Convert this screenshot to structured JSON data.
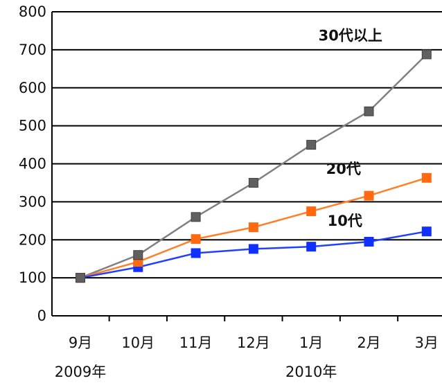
{
  "chart_data": {
    "type": "line",
    "title": "",
    "xlabel": "",
    "ylabel": "",
    "categories": [
      "9月",
      "10月",
      "11月",
      "12月",
      "1月",
      "2月",
      "3月"
    ],
    "year_labels": [
      {
        "text": "2009年",
        "category_index": 0
      },
      {
        "text": "2010年",
        "category_index": 4
      }
    ],
    "yticks": [
      0,
      100,
      200,
      300,
      400,
      500,
      600,
      700,
      800
    ],
    "ylim": [
      0,
      800
    ],
    "grid": "horizontal",
    "legend": "none",
    "series": [
      {
        "name": "30代以上",
        "color": "#808080",
        "marker_color": "#606060",
        "values": [
          100,
          160,
          260,
          350,
          450,
          538,
          688
        ]
      },
      {
        "name": "20代",
        "color": "#ff7f27",
        "marker_color": "#ff6a10",
        "values": [
          100,
          142,
          202,
          233,
          275,
          316,
          363
        ]
      },
      {
        "name": "10代",
        "color": "#2040ff",
        "marker_color": "#1030ff",
        "values": [
          100,
          128,
          165,
          176,
          182,
          195,
          222
        ]
      }
    ]
  }
}
